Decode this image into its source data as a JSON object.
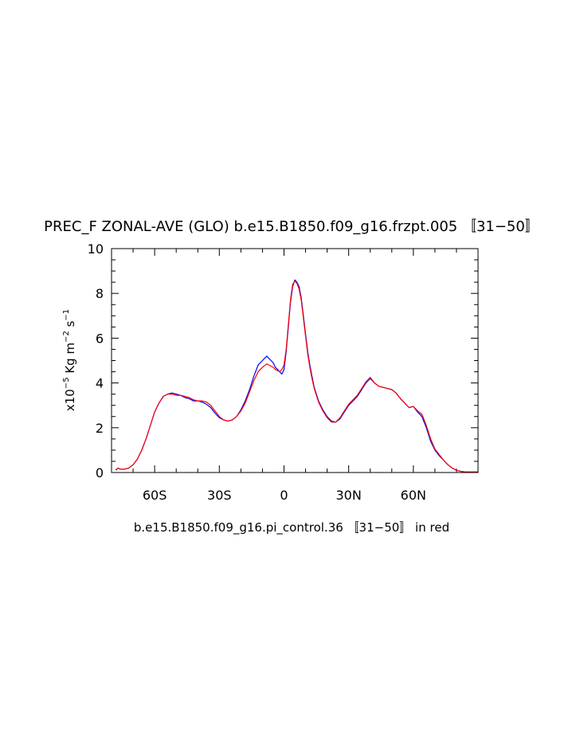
{
  "chart_data": {
    "type": "line",
    "title": "PREC_F ZONAL-AVE (GLO) b.e15.B1850.f09_g16.frzpt.005 〚31−50〛",
    "xlabel": "b.e15.B1850.f09_g16.pi_control.36 〚31−50〛 in red",
    "ylabel": {
      "prefix": "x10",
      "exp1": "−5",
      "unit1": " Kg m",
      "exp2": "−2",
      "unit2": " s",
      "exp3": "−1"
    },
    "xlim": [
      -80,
      90
    ],
    "ylim": [
      0,
      10
    ],
    "x_ticks": [
      {
        "value": -60,
        "label": "60S"
      },
      {
        "value": -30,
        "label": "30S"
      },
      {
        "value": 0,
        "label": "0"
      },
      {
        "value": 30,
        "label": "30N"
      },
      {
        "value": 60,
        "label": "60N"
      }
    ],
    "y_ticks": [
      {
        "value": 0,
        "label": "0"
      },
      {
        "value": 2,
        "label": "2"
      },
      {
        "value": 4,
        "label": "4"
      },
      {
        "value": 6,
        "label": "6"
      },
      {
        "value": 8,
        "label": "8"
      },
      {
        "value": 10,
        "label": "10"
      }
    ],
    "grid": false,
    "series": [
      {
        "color": "#0000ff",
        "x": [
          -78,
          -77,
          -76,
          -74,
          -72,
          -70,
          -68,
          -66,
          -64,
          -62,
          -60,
          -58,
          -56,
          -54,
          -52,
          -50,
          -48,
          -46,
          -44,
          -42,
          -40,
          -38,
          -36,
          -34,
          -32,
          -30,
          -28,
          -26,
          -24,
          -22,
          -20,
          -18,
          -16,
          -14,
          -12,
          -10,
          -8,
          -6,
          -5,
          -4,
          -3,
          -2,
          -1,
          0,
          1,
          2,
          3,
          4,
          5,
          6,
          7,
          8,
          9,
          10,
          11,
          12,
          13,
          14,
          15,
          16,
          17,
          18,
          20,
          22,
          24,
          26,
          28,
          30,
          32,
          34,
          36,
          38,
          40,
          42,
          44,
          46,
          48,
          50,
          52,
          54,
          56,
          58,
          60,
          62,
          64,
          66,
          68,
          70,
          72,
          74,
          76,
          78,
          80,
          82,
          84,
          86,
          88,
          90
        ],
        "y": [
          0.1,
          0.2,
          0.15,
          0.15,
          0.2,
          0.35,
          0.6,
          1.0,
          1.5,
          2.1,
          2.7,
          3.1,
          3.4,
          3.5,
          3.55,
          3.5,
          3.45,
          3.35,
          3.3,
          3.2,
          3.2,
          3.15,
          3.05,
          2.9,
          2.65,
          2.45,
          2.35,
          2.3,
          2.35,
          2.5,
          2.8,
          3.2,
          3.7,
          4.3,
          4.8,
          5.0,
          5.2,
          5.0,
          4.9,
          4.7,
          4.6,
          4.5,
          4.4,
          4.6,
          5.4,
          6.5,
          7.6,
          8.3,
          8.6,
          8.5,
          8.3,
          7.8,
          7.0,
          6.2,
          5.4,
          4.8,
          4.3,
          3.8,
          3.5,
          3.2,
          3.0,
          2.8,
          2.5,
          2.3,
          2.25,
          2.4,
          2.7,
          3.0,
          3.2,
          3.4,
          3.7,
          4.0,
          4.2,
          4.0,
          3.85,
          3.8,
          3.75,
          3.7,
          3.55,
          3.3,
          3.1,
          2.9,
          2.95,
          2.7,
          2.5,
          2.0,
          1.4,
          1.0,
          0.75,
          0.55,
          0.35,
          0.2,
          0.1,
          0.05,
          0.03,
          0.02,
          0.02,
          0.02
        ]
      },
      {
        "color": "#ff0000",
        "x": [
          -78,
          -77,
          -76,
          -74,
          -72,
          -70,
          -68,
          -66,
          -64,
          -62,
          -60,
          -58,
          -56,
          -54,
          -52,
          -50,
          -48,
          -46,
          -44,
          -42,
          -40,
          -38,
          -36,
          -34,
          -32,
          -30,
          -28,
          -26,
          -24,
          -22,
          -20,
          -18,
          -16,
          -14,
          -12,
          -10,
          -8,
          -6,
          -5,
          -4,
          -3,
          -2,
          -1,
          0,
          1,
          2,
          3,
          4,
          5,
          6,
          7,
          8,
          9,
          10,
          11,
          12,
          13,
          14,
          15,
          16,
          17,
          18,
          20,
          22,
          24,
          26,
          28,
          30,
          32,
          34,
          36,
          38,
          40,
          42,
          44,
          46,
          48,
          50,
          52,
          54,
          56,
          58,
          60,
          62,
          64,
          66,
          68,
          70,
          72,
          74,
          76,
          78,
          80,
          82,
          84,
          86,
          88,
          90
        ],
        "y": [
          0.12,
          0.2,
          0.15,
          0.15,
          0.2,
          0.35,
          0.6,
          1.0,
          1.5,
          2.1,
          2.7,
          3.1,
          3.4,
          3.5,
          3.5,
          3.45,
          3.45,
          3.4,
          3.35,
          3.25,
          3.2,
          3.2,
          3.15,
          3.0,
          2.75,
          2.5,
          2.35,
          2.3,
          2.35,
          2.5,
          2.75,
          3.1,
          3.6,
          4.1,
          4.5,
          4.7,
          4.85,
          4.75,
          4.7,
          4.6,
          4.55,
          4.5,
          4.6,
          4.8,
          5.5,
          6.6,
          7.7,
          8.4,
          8.55,
          8.45,
          8.2,
          7.7,
          6.9,
          6.1,
          5.3,
          4.7,
          4.2,
          3.75,
          3.45,
          3.15,
          2.95,
          2.75,
          2.45,
          2.25,
          2.25,
          2.45,
          2.75,
          3.05,
          3.25,
          3.45,
          3.75,
          4.05,
          4.25,
          4.0,
          3.85,
          3.8,
          3.75,
          3.7,
          3.55,
          3.3,
          3.1,
          2.9,
          2.95,
          2.75,
          2.6,
          2.1,
          1.5,
          1.05,
          0.8,
          0.55,
          0.35,
          0.2,
          0.1,
          0.05,
          0.03,
          0.02,
          0.02,
          0.02
        ]
      }
    ]
  }
}
